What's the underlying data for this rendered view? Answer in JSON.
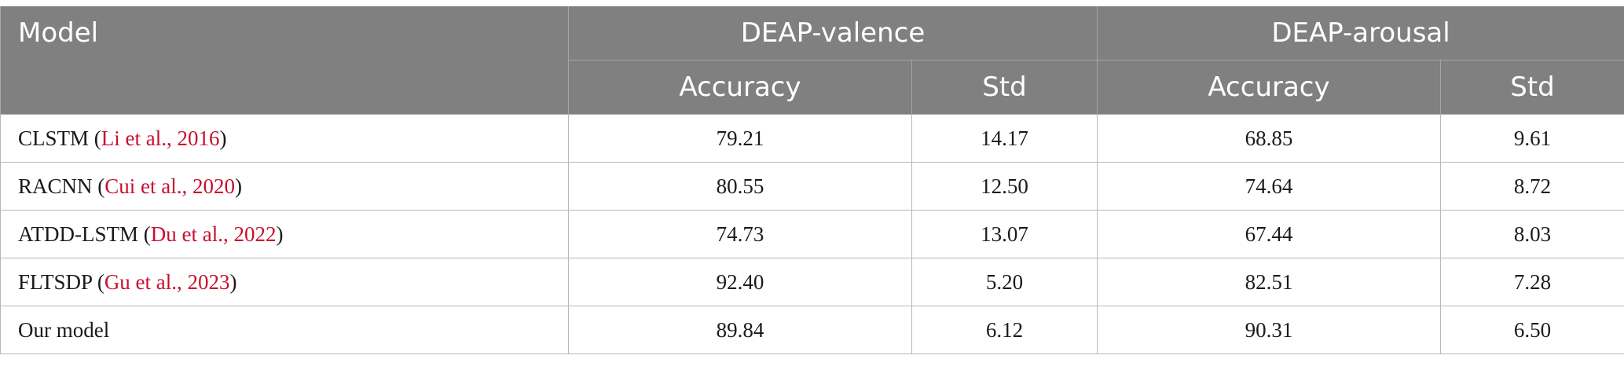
{
  "header": {
    "model": "Model",
    "group_valence": "DEAP-valence",
    "group_arousal": "DEAP-arousal",
    "accuracy": "Accuracy",
    "std": "Std"
  },
  "rows": [
    {
      "name": "CLSTM",
      "cite": "Li et al., 2016",
      "val_acc": "79.21",
      "val_std": "14.17",
      "aro_acc": "68.85",
      "aro_std": "9.61"
    },
    {
      "name": "RACNN",
      "cite": "Cui et al., 2020",
      "val_acc": "80.55",
      "val_std": "12.50",
      "aro_acc": "74.64",
      "aro_std": "8.72"
    },
    {
      "name": "ATDD-LSTM",
      "cite": "Du et al., 2022",
      "val_acc": "74.73",
      "val_std": "13.07",
      "aro_acc": "67.44",
      "aro_std": "8.03"
    },
    {
      "name": "FLTSDP",
      "cite": "Gu et al., 2023",
      "val_acc": "92.40",
      "val_std": "5.20",
      "aro_acc": "82.51",
      "aro_std": "7.28"
    },
    {
      "name": "Our model",
      "cite": "",
      "val_acc": "89.84",
      "val_std": "6.12",
      "aro_acc": "90.31",
      "aro_std": "6.50"
    }
  ],
  "colors": {
    "header_bg": "#808080",
    "header_text": "#ffffff",
    "citation": "#c8102e"
  }
}
